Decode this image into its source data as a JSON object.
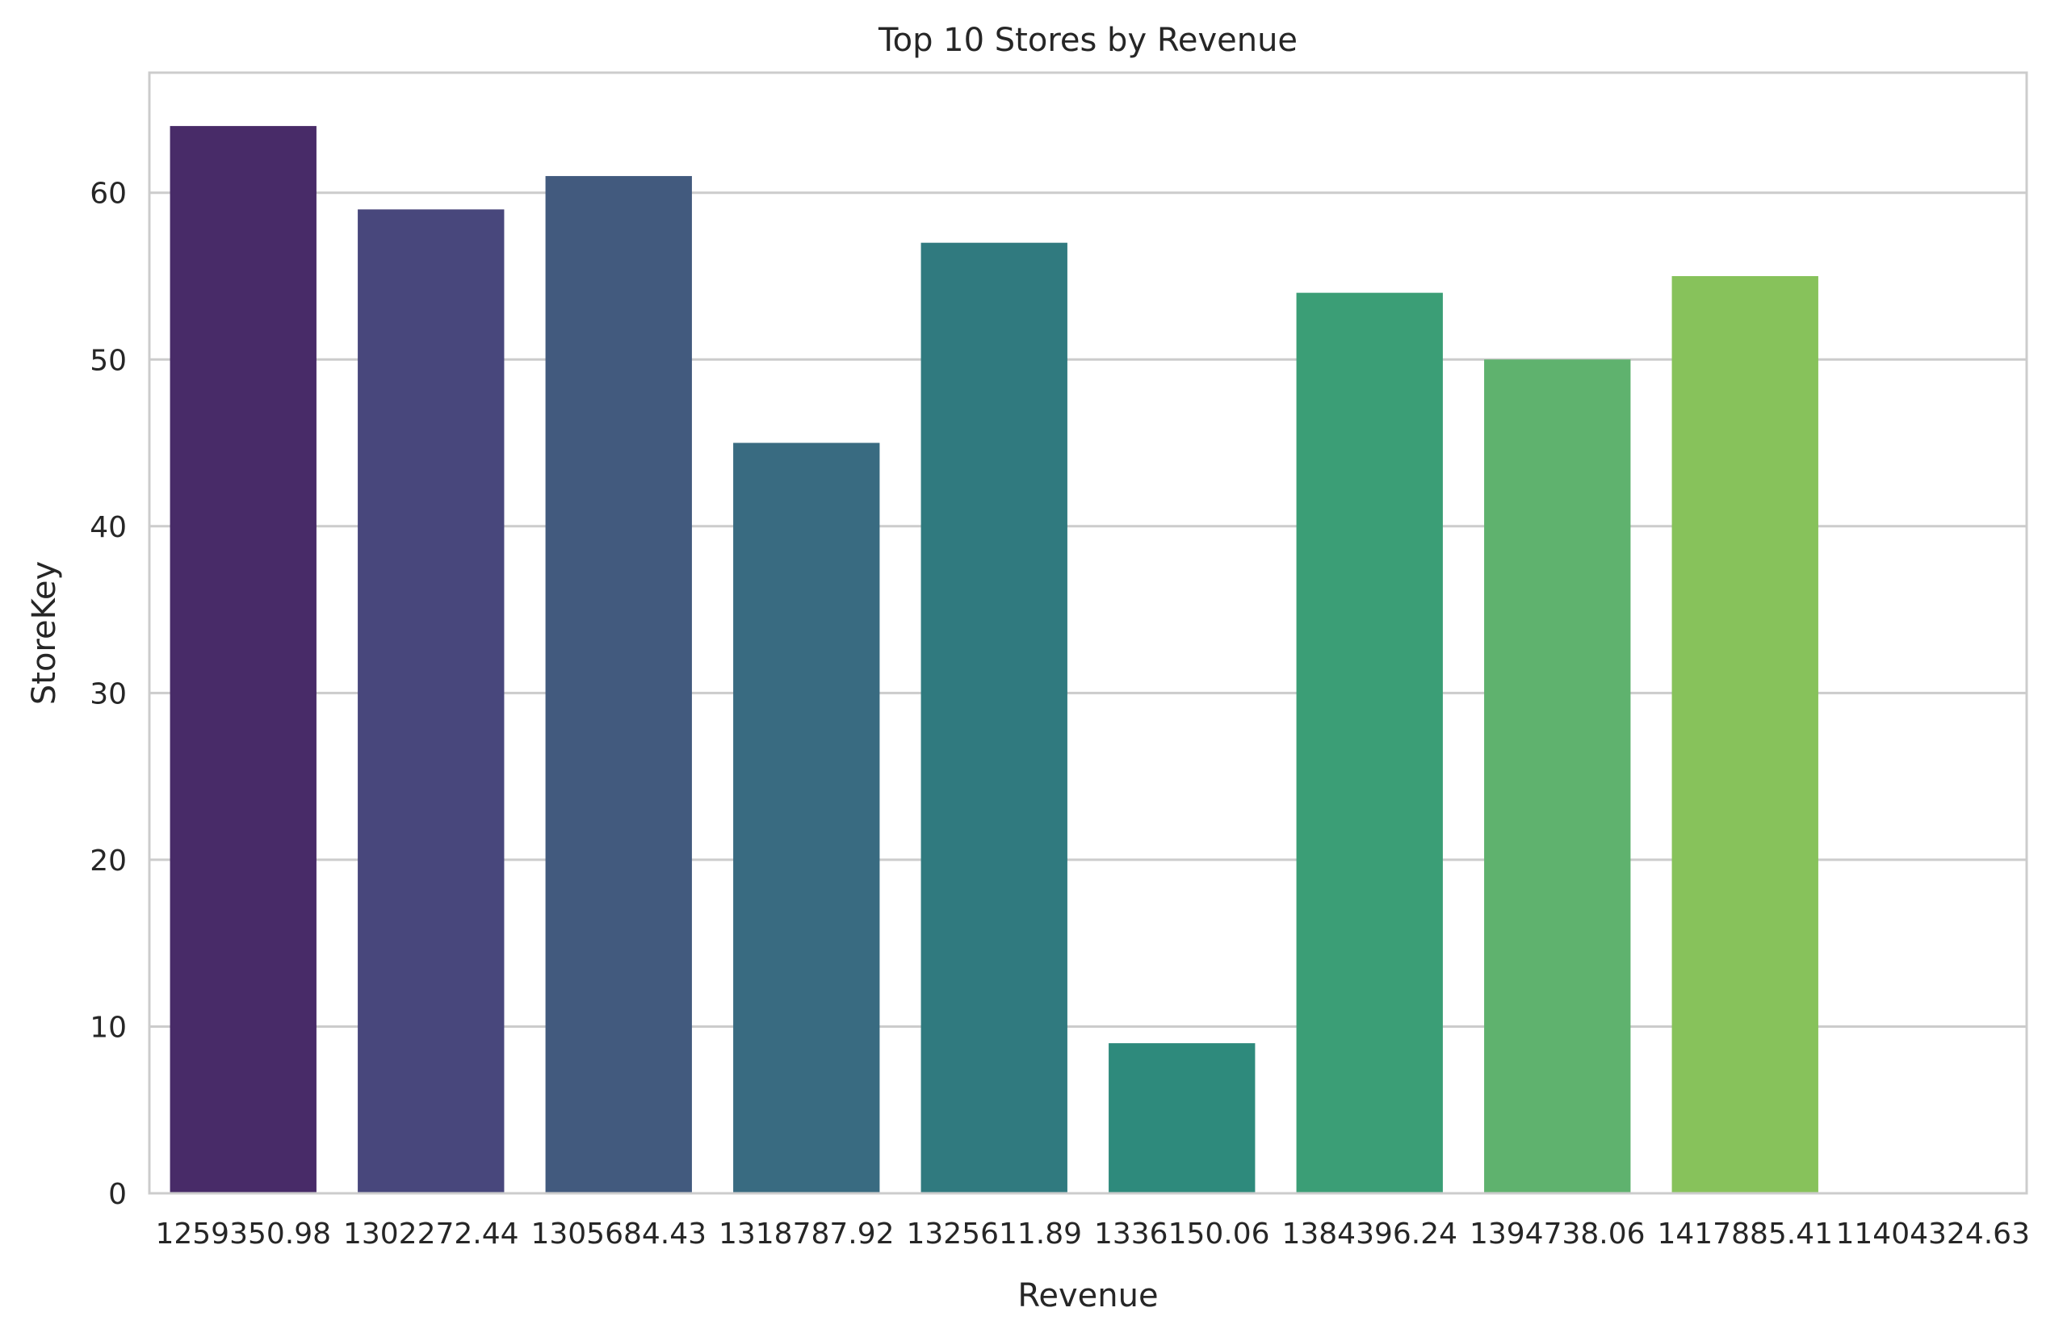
{
  "chart_data": {
    "type": "bar",
    "title": "Top 10 Stores by Revenue",
    "xlabel": "Revenue",
    "ylabel": "StoreKey",
    "categories": [
      "1259350.98",
      "1302272.44",
      "1305684.43",
      "1318787.92",
      "1325611.89",
      "1336150.06",
      "1384396.24",
      "1394738.06",
      "1417885.41",
      "11404324.63"
    ],
    "values": [
      64,
      59,
      61,
      45,
      57,
      9,
      54,
      50,
      55,
      0
    ],
    "ylim": [
      0,
      67.2
    ],
    "yticks": [
      0,
      10,
      20,
      30,
      40,
      50,
      60
    ],
    "grid": "y",
    "colors": [
      "#482b68",
      "#48477c",
      "#425a7e",
      "#396b81",
      "#307a7f",
      "#2e8a7c",
      "#3b9e76",
      "#5fb26e",
      "#87c25b",
      "#b4d144"
    ],
    "grid_color": "#cccccc",
    "spine_color": "#cccccc"
  }
}
